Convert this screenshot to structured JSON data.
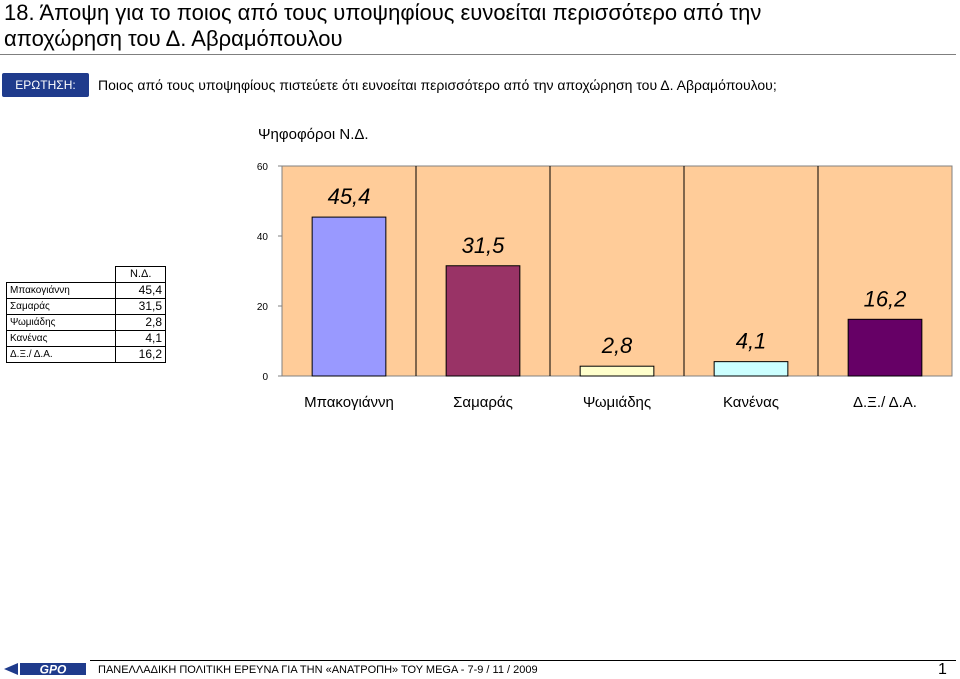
{
  "title": {
    "line1": "18.  Άποψη για το ποιος από τους υποψηφίους ευνοείται περισσότερο από την",
    "line2": "αποχώρηση του Δ. Αβραμόπουλου"
  },
  "question": {
    "tag": "ΕΡΩΤΗΣΗ:",
    "text": "Ποιος από τους υποψηφίους πιστεύετε ότι ευνοείται περισσότερο από την αποχώρηση του Δ. Αβραμόπουλου;"
  },
  "chart_data": {
    "type": "bar",
    "title": "Ψηφοφόροι Ν.Δ.",
    "categories": [
      "Μπακογιάννη",
      "Σαμαράς",
      "Ψωμιάδης",
      "Κανένας",
      "Δ.Ξ./ Δ.Α."
    ],
    "values": [
      45.4,
      31.5,
      2.8,
      4.1,
      16.2
    ],
    "value_labels": [
      "45,4",
      "31,5",
      "2,8",
      "4,1",
      "16,2"
    ],
    "colors": [
      "#9999ff",
      "#993366",
      "#ffffcc",
      "#ccffff",
      "#660066"
    ],
    "ylim": [
      0,
      60
    ],
    "yticks": [
      0,
      20,
      40,
      60
    ],
    "ytick_labels": [
      "0",
      "20",
      "40",
      "60"
    ],
    "plot_background": "#ffcc99",
    "grid": "vertical separators"
  },
  "data_table": {
    "header": "Ν.Δ.",
    "rows": [
      {
        "label": "Μπακογιάννη",
        "value": "45,4"
      },
      {
        "label": "Σαμαράς",
        "value": "31,5"
      },
      {
        "label": "Ψωμιάδης",
        "value": "2,8"
      },
      {
        "label": "Κανένας",
        "value": "4,1"
      },
      {
        "label": "Δ.Ξ./ Δ.Α.",
        "value": "16,2"
      }
    ]
  },
  "footer": {
    "logo_text": "GPO",
    "text": "ΠΑΝΕΛΛΑΔΙΚΗ ΠΟΛΙΤΙΚΗ ΕΡΕΥΝΑ ΓΙΑ ΤΗΝ «ΑΝΑΤΡΟΠΗ» ΤΟΥ MEGA  -  7-9  / 11 / 2009",
    "page": "1"
  }
}
